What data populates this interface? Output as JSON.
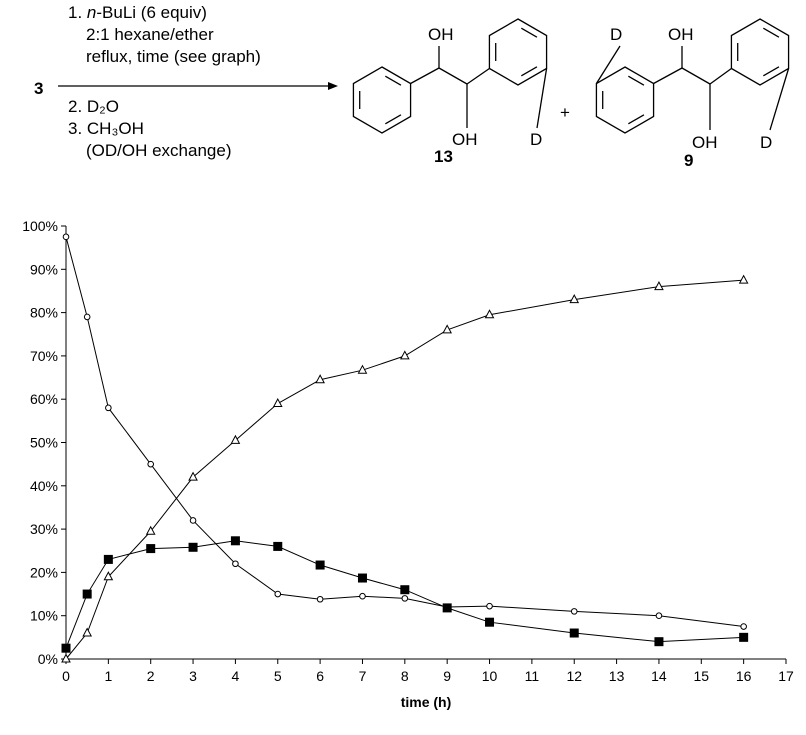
{
  "scheme": {
    "reactant": "3",
    "conditions_above": [
      [
        "1. ",
        "n",
        "-BuLi (6 equiv)"
      ],
      [
        "2:1 hexane/ether"
      ],
      [
        "reflux, time (see graph)"
      ]
    ],
    "conditions_below": [
      "2. D₂O",
      "3. CH₃OH",
      "(OD/OH exchange)"
    ],
    "product_13": {
      "label": "13",
      "oh_top": "OH",
      "oh_bottom": "OH",
      "d": "D"
    },
    "plus": "+",
    "product_9": {
      "label": "9",
      "oh_top": "OH",
      "oh_bottom": "OH",
      "d_left": "D",
      "d_right": "D"
    }
  },
  "chart_data": {
    "type": "line",
    "xlabel": "time (h)",
    "xlim": [
      0,
      17
    ],
    "xticks": [
      0,
      1,
      2,
      3,
      4,
      5,
      6,
      7,
      8,
      9,
      10,
      11,
      12,
      13,
      14,
      15,
      16,
      17
    ],
    "ylim": [
      0,
      100
    ],
    "yticks": [
      {
        "value": 0,
        "label": "0%"
      },
      {
        "value": 10,
        "label": "10%"
      },
      {
        "value": 20,
        "label": "20%"
      },
      {
        "value": 30,
        "label": "30%"
      },
      {
        "value": 40,
        "label": "40%"
      },
      {
        "value": 50,
        "label": "50%"
      },
      {
        "value": 60,
        "label": "60%"
      },
      {
        "value": 70,
        "label": "70%"
      },
      {
        "value": 80,
        "label": "80%"
      },
      {
        "value": 90,
        "label": "90%"
      },
      {
        "value": 100,
        "label": "100%"
      }
    ],
    "grid": false,
    "series": [
      {
        "marker": "circle",
        "color": "#000000",
        "x": [
          0,
          0.5,
          1,
          2,
          3,
          4,
          5,
          6,
          7,
          8,
          9,
          10,
          12,
          14,
          16
        ],
        "values": [
          97.5,
          79,
          58,
          45,
          32,
          22,
          15,
          13.8,
          14.5,
          14,
          12,
          12.2,
          11,
          10,
          7.5
        ]
      },
      {
        "marker": "triangle",
        "color": "#000000",
        "x": [
          0,
          0.5,
          1,
          2,
          3,
          4,
          5,
          6,
          7,
          8,
          9,
          10,
          12,
          14,
          16
        ],
        "values": [
          0,
          6,
          19,
          29.5,
          42,
          50.5,
          59,
          64.5,
          66.7,
          70,
          76,
          79.5,
          83,
          86,
          87.5
        ]
      },
      {
        "marker": "square",
        "color": "#000000",
        "x": [
          0,
          0.5,
          1,
          2,
          3,
          4,
          5,
          6,
          7,
          8,
          9,
          10,
          12,
          14,
          16
        ],
        "values": [
          2.5,
          15,
          23,
          25.5,
          25.8,
          27.3,
          26,
          21.7,
          18.7,
          16,
          11.8,
          8.5,
          6,
          4,
          5
        ]
      }
    ]
  }
}
